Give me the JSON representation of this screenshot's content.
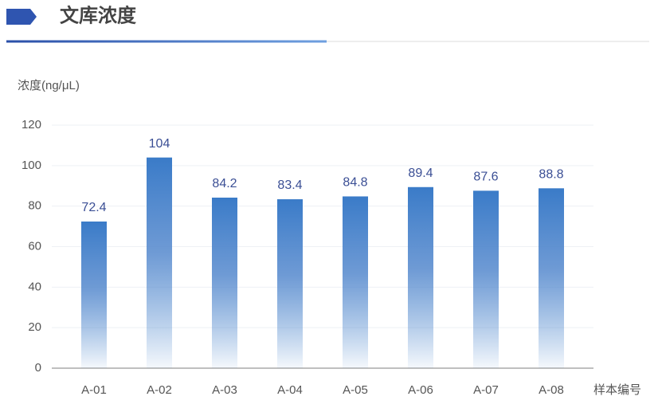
{
  "chart_data": {
    "type": "bar",
    "title": "文库浓度",
    "y_label": "浓度(ng/μL)",
    "x_label": "样本编号",
    "categories": [
      "A-01",
      "A-02",
      "A-03",
      "A-04",
      "A-05",
      "A-06",
      "A-07",
      "A-08"
    ],
    "values": [
      72.4,
      104,
      84.2,
      83.4,
      84.8,
      89.4,
      87.6,
      88.8
    ],
    "color": "#3a7bc8",
    "ylim": [
      0,
      120
    ],
    "yticks": [
      0,
      20,
      40,
      60,
      80,
      100,
      120
    ],
    "grid": true
  }
}
